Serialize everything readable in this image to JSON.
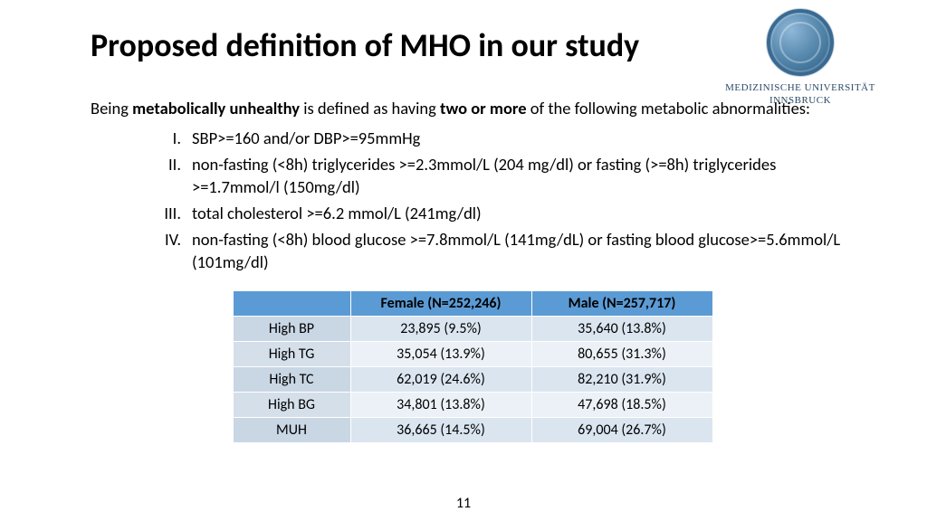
{
  "title": "Proposed definition of MHO in our study",
  "logo": {
    "line1": "MEDIZINISCHE UNIVERSITÄT",
    "line2": "INNSBRUCK"
  },
  "intro": {
    "pre": "Being ",
    "bold1": "metabolically unhealthy",
    "mid": " is defined as having ",
    "bold2": "two or more",
    "post": " of the following metabolic abnormalities:"
  },
  "criteria": [
    {
      "num": "I.",
      "text": "SBP>=160 and/or DBP>=95mmHg"
    },
    {
      "num": "II.",
      "text": "non-fasting (<8h) triglycerides >=2.3mmol/L (204 mg/dl) or fasting (>=8h) triglycerides >=1.7mmol/l (150mg/dl)"
    },
    {
      "num": "III.",
      "text": "total cholesterol >=6.2 mmol/L (241mg/dl)"
    },
    {
      "num": "IV.",
      "text": "non-fasting (<8h) blood glucose >=7.8mmol/L (141mg/dL) or fasting blood glucose>=5.6mmol/L (101mg/dl)"
    }
  ],
  "table": {
    "header_bg": "#5b9bd5",
    "alt_row_bg_a": "#dae5f0",
    "alt_row_bg_b": "#ecf1f7",
    "rowlabel_bg_a": "#c9d6e4",
    "rowlabel_bg_b": "#d5dfea",
    "columns": [
      "",
      "Female (N=252,246)",
      "Male (N=257,717)"
    ],
    "rows": [
      {
        "label": "High BP",
        "female": "23,895 (9.5%)",
        "male": "35,640 (13.8%)"
      },
      {
        "label": "High TG",
        "female": "35,054 (13.9%)",
        "male": "80,655 (31.3%)"
      },
      {
        "label": "High TC",
        "female": "62,019 (24.6%)",
        "male": "82,210 (31.9%)"
      },
      {
        "label": "High BG",
        "female": "34,801 (13.8%)",
        "male": "47,698 (18.5%)"
      },
      {
        "label": "MUH",
        "female": "36,665 (14.5%)",
        "male": "69,004 (26.7%)"
      }
    ]
  },
  "page_number": "11"
}
